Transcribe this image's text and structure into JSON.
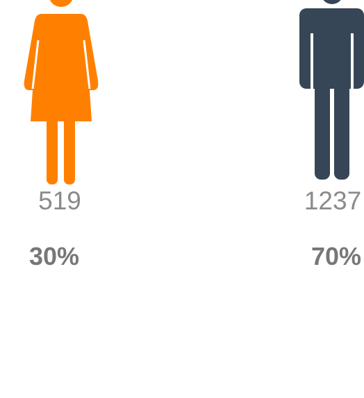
{
  "figures": [
    {
      "count": "519",
      "percent": "30%",
      "color": "#ff8000"
    },
    {
      "count": "1237",
      "percent": "70%",
      "color": "#364656"
    }
  ]
}
